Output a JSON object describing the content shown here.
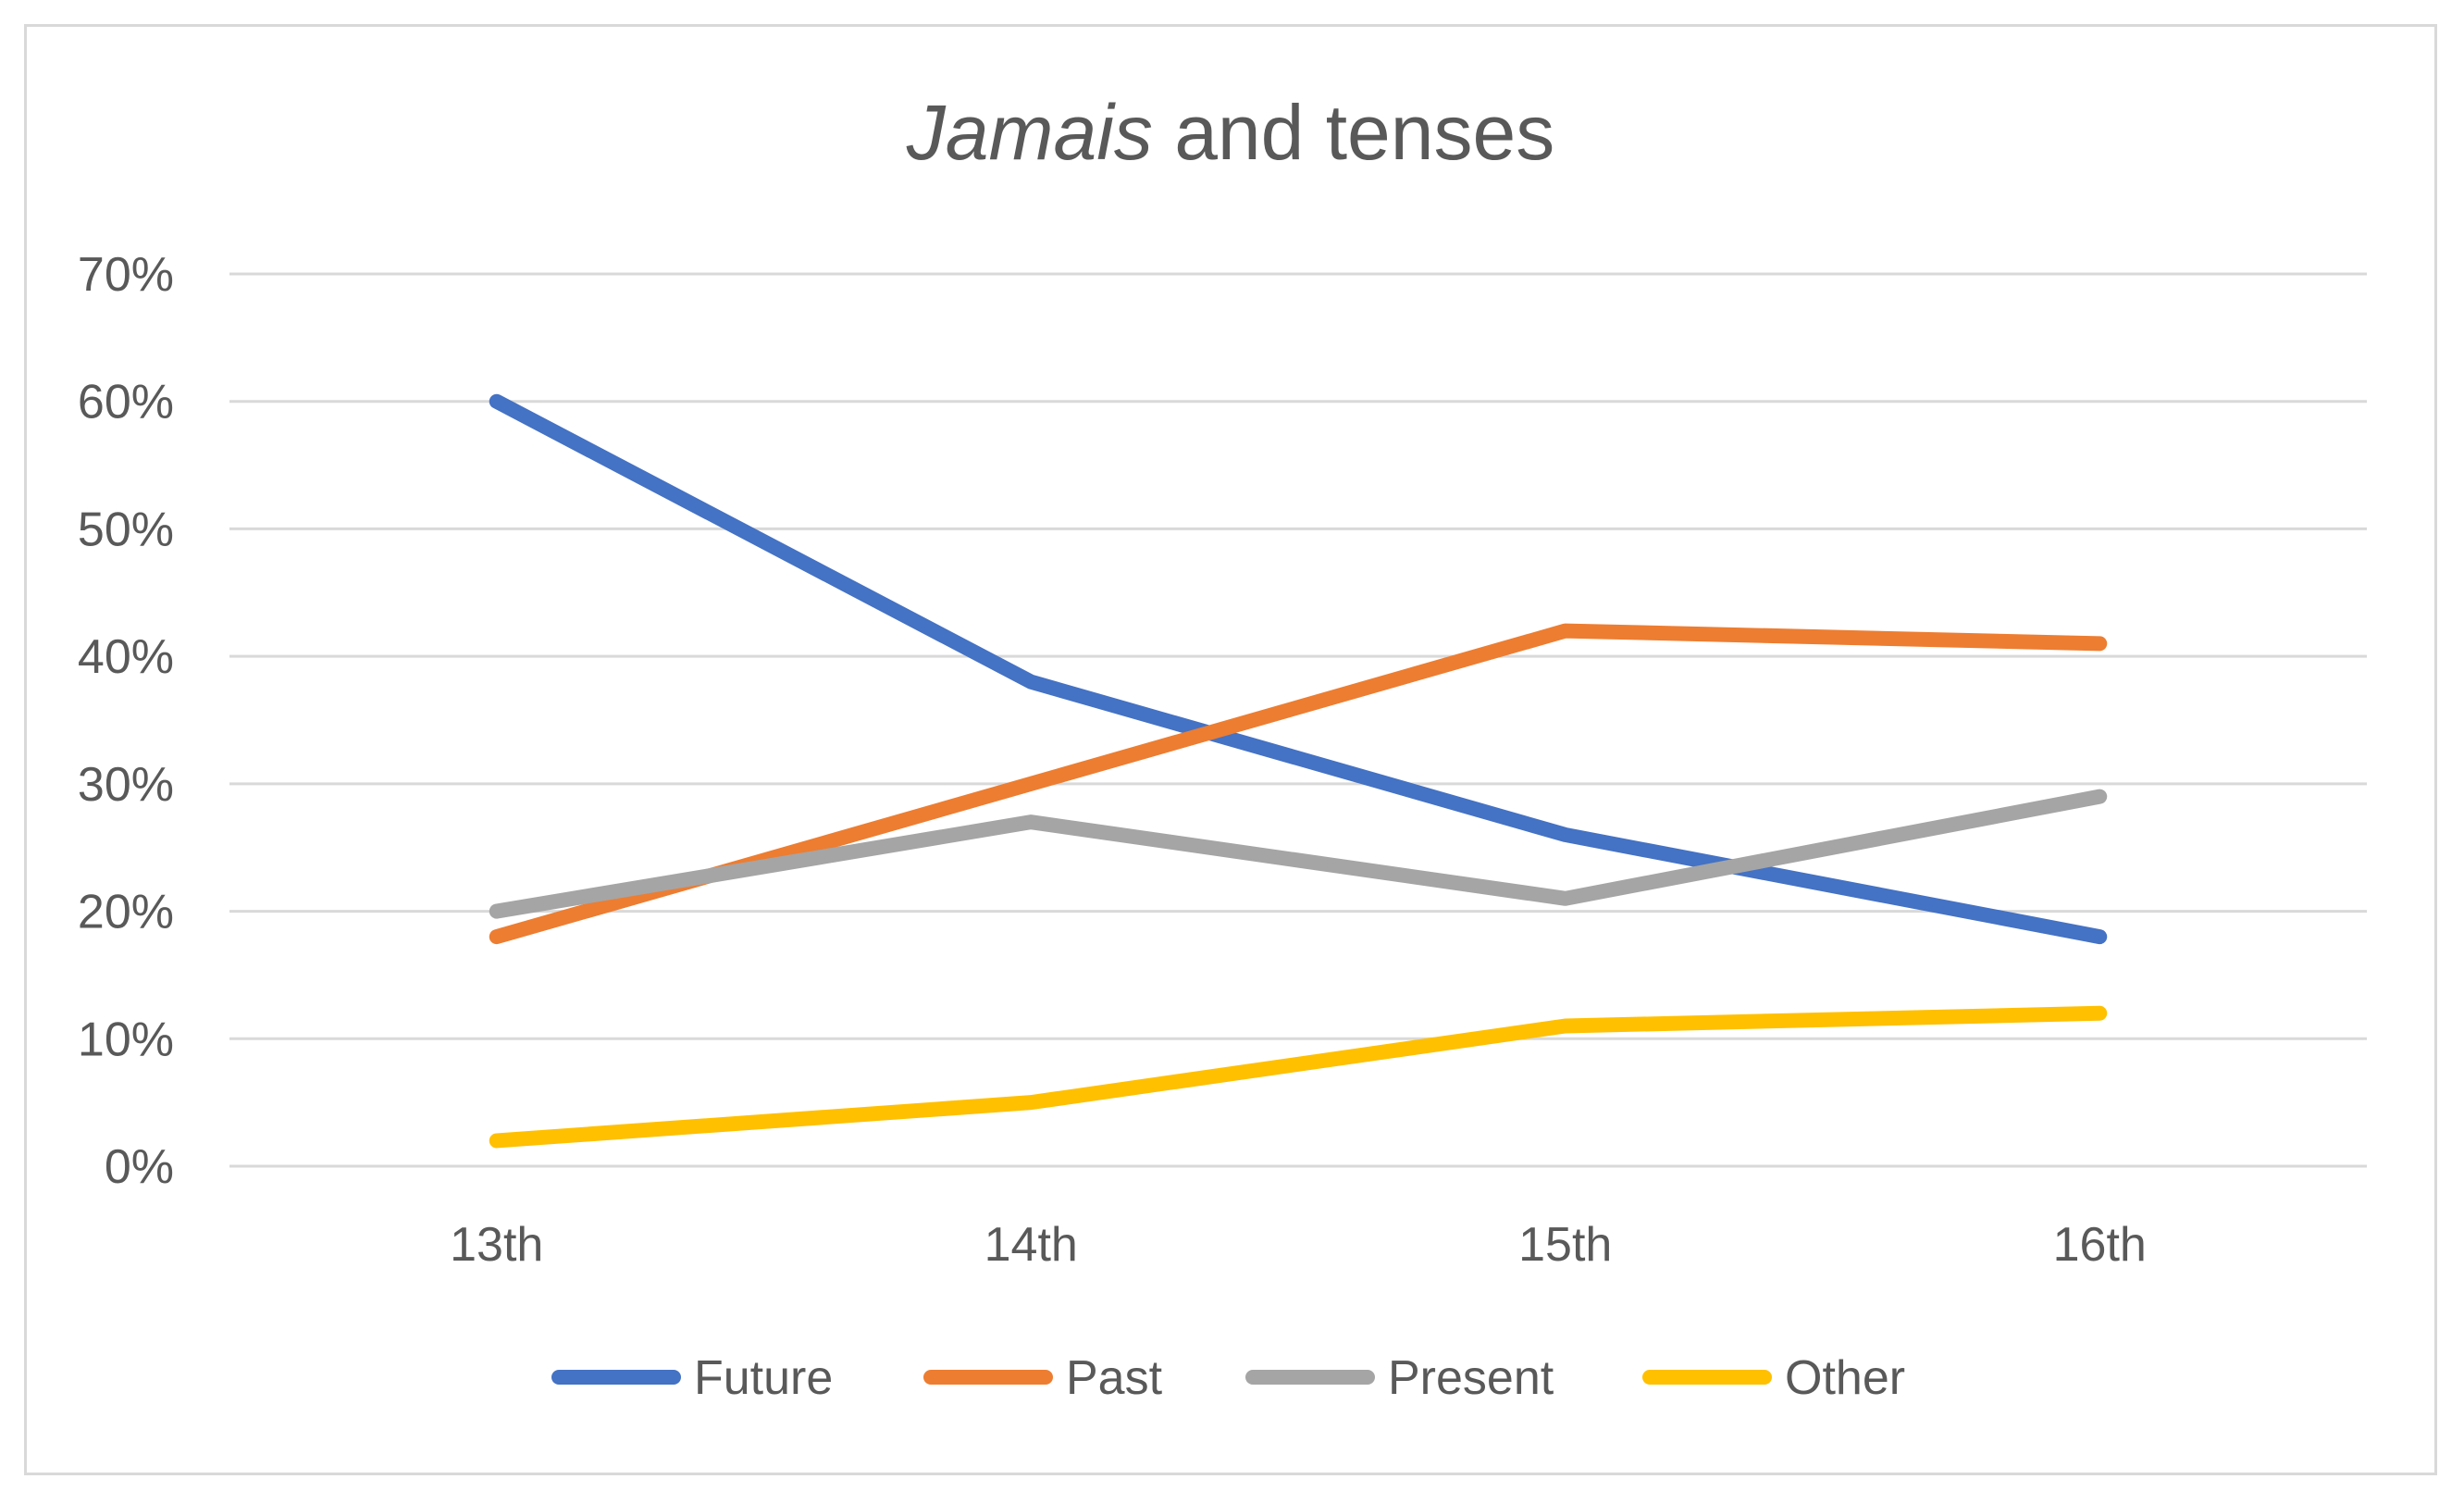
{
  "chart_data": {
    "type": "line",
    "title": {
      "italic_part": "Jamais",
      "rest": " and tenses"
    },
    "categories": [
      "13th",
      "14th",
      "15th",
      "16th"
    ],
    "y_ticks": [
      "0%",
      "10%",
      "20%",
      "30%",
      "40%",
      "50%",
      "60%",
      "70%"
    ],
    "ylim": [
      0,
      70
    ],
    "grid": true,
    "legend_position": "bottom",
    "series": [
      {
        "name": "Future",
        "color": "#4472c4",
        "values": [
          60,
          38,
          26,
          18
        ]
      },
      {
        "name": "Past",
        "color": "#ed7d31",
        "values": [
          18,
          30,
          42,
          41
        ]
      },
      {
        "name": "Present",
        "color": "#a5a5a5",
        "values": [
          20,
          27,
          21,
          29
        ]
      },
      {
        "name": "Other",
        "color": "#ffc000",
        "values": [
          2,
          5,
          11,
          12
        ]
      }
    ]
  }
}
